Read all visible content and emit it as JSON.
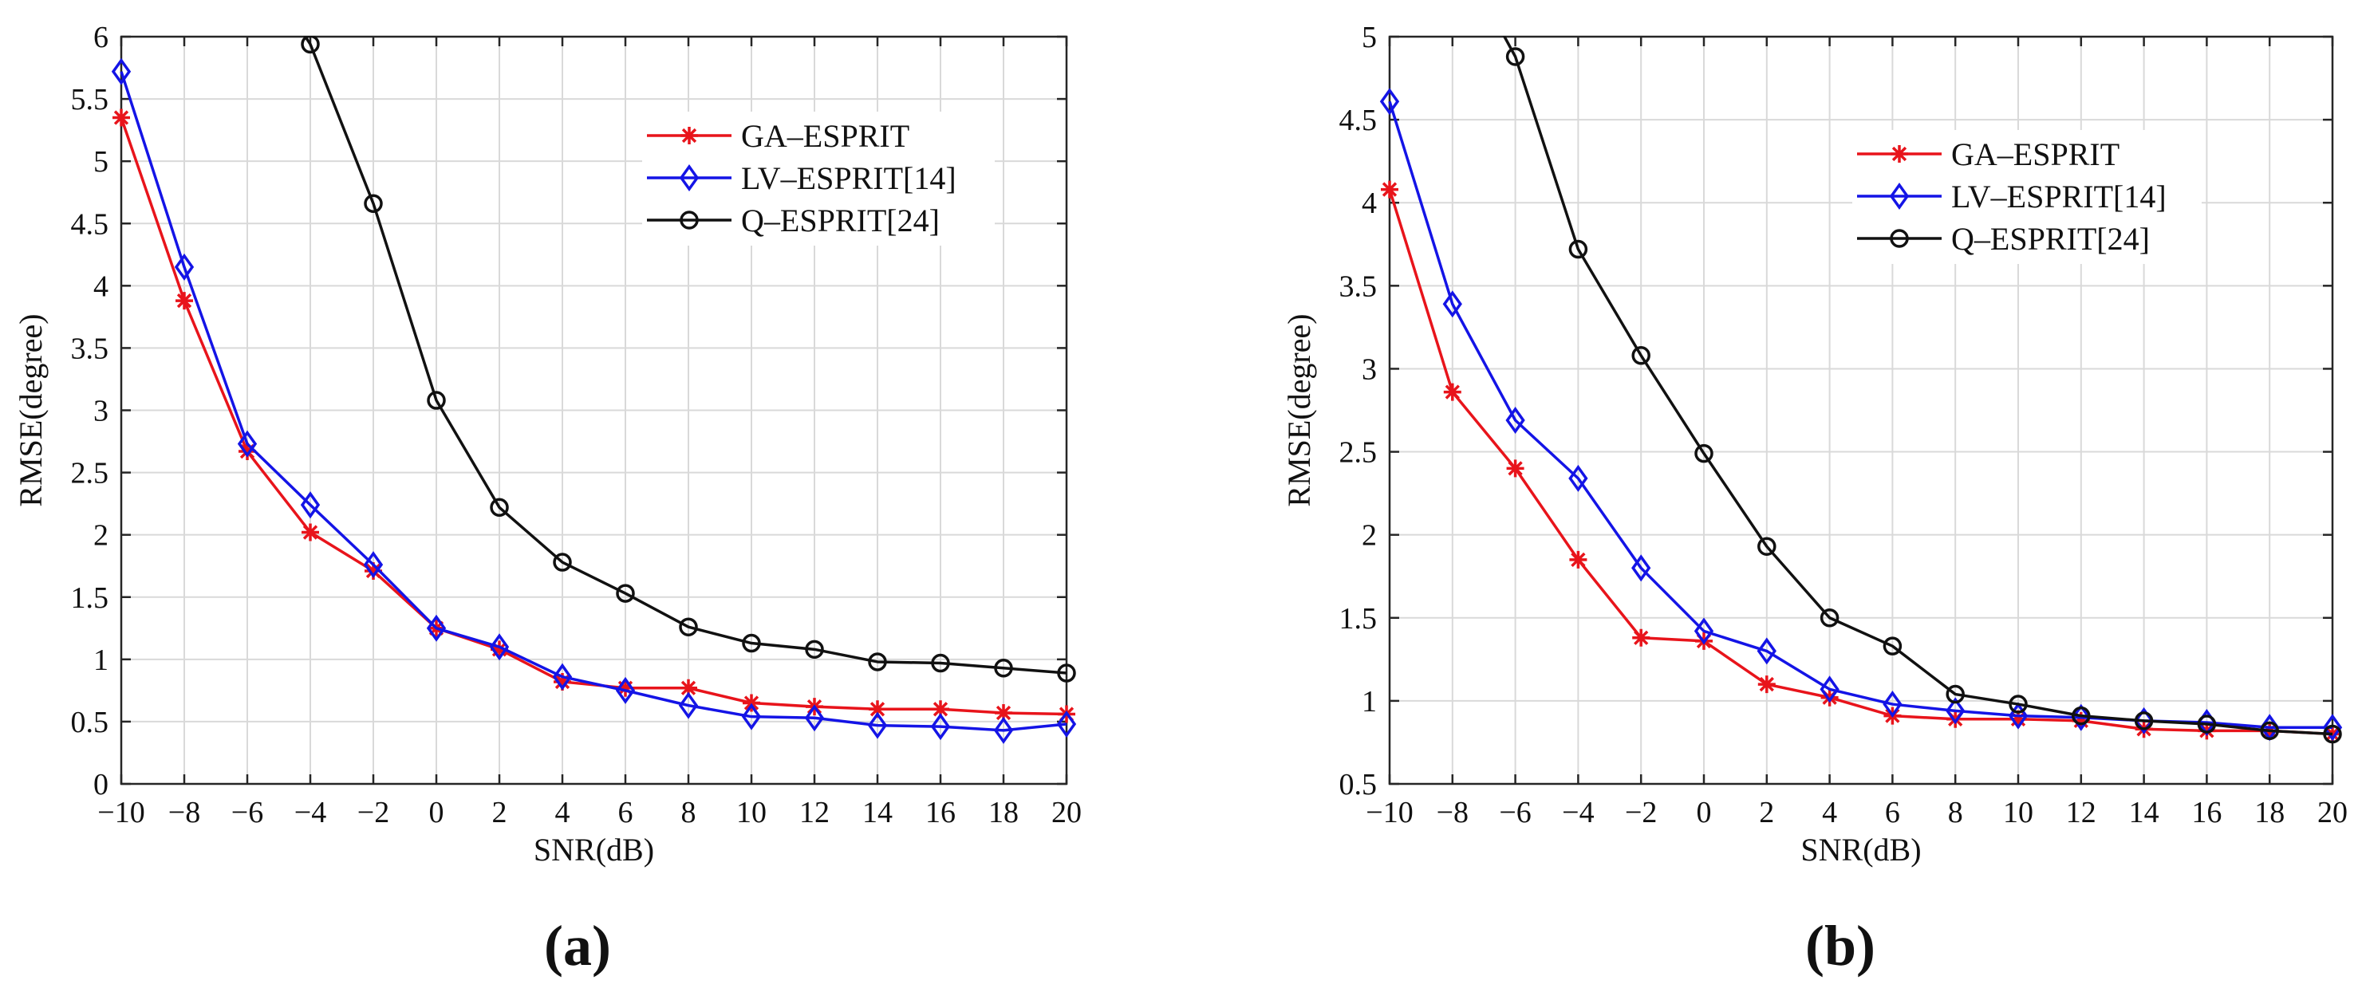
{
  "chart_data": [
    {
      "type": "line",
      "panel_label": "(a)",
      "xlabel": "SNR(dB)",
      "ylabel": "RMSE(degree)",
      "xlim": [
        -10,
        20
      ],
      "ylim": [
        0,
        6
      ],
      "xticks": [
        -10,
        -8,
        -6,
        -4,
        -2,
        0,
        2,
        4,
        6,
        8,
        10,
        12,
        14,
        16,
        18,
        20
      ],
      "xtick_labels": [
        "−10",
        "−8",
        "−6",
        "−4",
        "−2",
        "0",
        "2",
        "4",
        "6",
        "8",
        "10",
        "12",
        "14",
        "16",
        "18",
        "20"
      ],
      "yticks": [
        0,
        0.5,
        1,
        1.5,
        2,
        2.5,
        3,
        3.5,
        4,
        4.5,
        5,
        5.5,
        6
      ],
      "ytick_labels": [
        "0",
        "0.5",
        "1",
        "1.5",
        "2",
        "2.5",
        "3",
        "3.5",
        "4",
        "4.5",
        "5",
        "5.5",
        "6"
      ],
      "grid": true,
      "legend_position": "top-right",
      "x": [
        -10,
        -8,
        -6,
        -4,
        -2,
        0,
        2,
        4,
        6,
        8,
        10,
        12,
        14,
        16,
        18,
        20
      ],
      "series": [
        {
          "name": "GA–ESPRIT",
          "color": "#e8141b",
          "marker": "asterisk",
          "values": [
            5.35,
            3.88,
            2.67,
            2.02,
            1.71,
            1.25,
            1.08,
            0.82,
            0.77,
            0.77,
            0.65,
            0.62,
            0.6,
            0.6,
            0.57,
            0.56
          ]
        },
        {
          "name": "LV–ESPRIT[14]",
          "color": "#1414e6",
          "marker": "diamond",
          "values": [
            5.72,
            4.15,
            2.73,
            2.24,
            1.76,
            1.25,
            1.1,
            0.86,
            0.75,
            0.63,
            0.54,
            0.53,
            0.47,
            0.46,
            0.43,
            0.48
          ]
        },
        {
          "name": "Q–ESPRIT[24]",
          "color": "#111111",
          "marker": "circle",
          "values": [
            null,
            null,
            null,
            5.94,
            4.66,
            3.08,
            2.22,
            1.78,
            1.53,
            1.26,
            1.13,
            1.08,
            0.98,
            0.97,
            0.93,
            0.89
          ]
        }
      ]
    },
    {
      "type": "line",
      "panel_label": "(b)",
      "xlabel": "SNR(dB)",
      "ylabel": "RMSE(degree)",
      "xlim": [
        -10,
        20
      ],
      "ylim": [
        0.5,
        5
      ],
      "xticks": [
        -10,
        -8,
        -6,
        -4,
        -2,
        0,
        2,
        4,
        6,
        8,
        10,
        12,
        14,
        16,
        18,
        20
      ],
      "xtick_labels": [
        "−10",
        "−8",
        "−6",
        "−4",
        "−2",
        "0",
        "2",
        "4",
        "6",
        "8",
        "10",
        "12",
        "14",
        "16",
        "18",
        "20"
      ],
      "yticks": [
        0.5,
        1,
        1.5,
        2,
        2.5,
        3,
        3.5,
        4,
        4.5,
        5
      ],
      "ytick_labels": [
        "0.5",
        "1",
        "1.5",
        "2",
        "2.5",
        "3",
        "3.5",
        "4",
        "4.5",
        "5"
      ],
      "grid": true,
      "legend_position": "top-right",
      "x": [
        -10,
        -8,
        -6,
        -4,
        -2,
        0,
        2,
        4,
        6,
        8,
        10,
        12,
        14,
        16,
        18,
        20
      ],
      "series": [
        {
          "name": "GA–ESPRIT",
          "color": "#e8141b",
          "marker": "asterisk",
          "values": [
            4.08,
            2.86,
            2.4,
            1.85,
            1.38,
            1.36,
            1.1,
            1.02,
            0.91,
            0.89,
            0.89,
            0.88,
            0.83,
            0.82,
            0.82,
            0.8
          ]
        },
        {
          "name": "LV–ESPRIT[14]",
          "color": "#1414e6",
          "marker": "diamond",
          "values": [
            4.61,
            3.39,
            2.69,
            2.34,
            1.8,
            1.42,
            1.3,
            1.07,
            0.98,
            0.94,
            0.91,
            0.9,
            0.88,
            0.87,
            0.84,
            0.84
          ]
        },
        {
          "name": "Q–ESPRIT[24]",
          "color": "#111111",
          "marker": "circle",
          "values": [
            null,
            null,
            4.88,
            3.72,
            3.08,
            2.49,
            1.93,
            1.5,
            1.33,
            1.04,
            0.98,
            0.91,
            0.88,
            0.86,
            0.82,
            0.8
          ]
        }
      ]
    }
  ]
}
